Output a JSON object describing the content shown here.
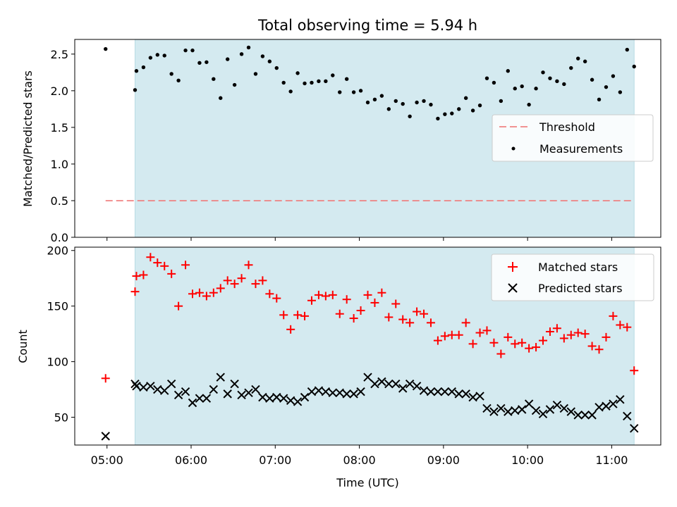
{
  "chart_data": [
    {
      "type": "scatter",
      "title": "Total observing time = 5.94 h",
      "xlabel": "",
      "ylabel": "Matched/Predicted stars",
      "xlim": [
        "04:37",
        "11:35"
      ],
      "ylim": [
        0,
        2.7
      ],
      "yticks": [
        "0.0",
        "0.5",
        "1.0",
        "1.5",
        "2.0",
        "2.5"
      ],
      "shaded_interval": [
        "05:20",
        "11:16"
      ],
      "shade_color": "#d4eaf0",
      "threshold": {
        "name": "Threshold",
        "value": 0.5,
        "color": "#f08080"
      },
      "legend": {
        "placement": "center-right",
        "entries": [
          "Threshold",
          "Measurements"
        ]
      },
      "series": [
        {
          "name": "Measurements",
          "color": "#000000",
          "x": [
            "04:59",
            "05:20",
            "05:21",
            "05:26",
            "05:31",
            "05:36",
            "05:41",
            "05:46",
            "05:51",
            "05:56",
            "06:01",
            "06:06",
            "06:11",
            "06:16",
            "06:21",
            "06:26",
            "06:31",
            "06:36",
            "06:41",
            "06:46",
            "06:51",
            "06:56",
            "07:01",
            "07:06",
            "07:11",
            "07:16",
            "07:21",
            "07:26",
            "07:31",
            "07:36",
            "07:41",
            "07:46",
            "07:51",
            "07:56",
            "08:01",
            "08:06",
            "08:11",
            "08:16",
            "08:21",
            "08:26",
            "08:31",
            "08:36",
            "08:41",
            "08:46",
            "08:51",
            "08:56",
            "09:01",
            "09:06",
            "09:11",
            "09:16",
            "09:21",
            "09:26",
            "09:31",
            "09:36",
            "09:41",
            "09:46",
            "09:51",
            "09:56",
            "10:01",
            "10:06",
            "10:11",
            "10:16",
            "10:21",
            "10:26",
            "10:31",
            "10:36",
            "10:41",
            "10:46",
            "10:51",
            "10:56",
            "11:01",
            "11:06",
            "11:11",
            "11:16"
          ],
          "y": [
            2.57,
            2.01,
            2.27,
            2.32,
            2.45,
            2.49,
            2.48,
            2.23,
            2.14,
            2.55,
            2.55,
            2.38,
            2.39,
            2.16,
            1.9,
            2.43,
            2.08,
            2.5,
            2.59,
            2.23,
            2.47,
            2.4,
            2.31,
            2.11,
            1.99,
            2.24,
            2.1,
            2.11,
            2.13,
            2.13,
            2.21,
            1.98,
            2.16,
            1.98,
            2.0,
            1.84,
            1.88,
            1.93,
            1.75,
            1.86,
            1.82,
            1.65,
            1.84,
            1.86,
            1.81,
            1.62,
            1.68,
            1.69,
            1.75,
            1.9,
            1.73,
            1.8,
            2.17,
            2.11,
            1.86,
            2.27,
            2.03,
            2.06,
            1.81,
            2.03,
            2.25,
            2.17,
            2.13,
            2.09,
            2.31,
            2.44,
            2.4,
            2.15,
            1.88,
            2.05,
            2.2,
            1.98,
            2.56,
            2.33
          ]
        }
      ]
    },
    {
      "type": "scatter",
      "title": "",
      "xlabel": "Time (UTC)",
      "ylabel": "Count",
      "xlim": [
        "04:37",
        "11:35"
      ],
      "ylim": [
        25,
        203
      ],
      "yticks": [
        "50",
        "100",
        "150",
        "200"
      ],
      "xticks": [
        "05:00",
        "06:00",
        "07:00",
        "08:00",
        "09:00",
        "10:00",
        "11:00"
      ],
      "shaded_interval": [
        "05:20",
        "11:16"
      ],
      "shade_color": "#d4eaf0",
      "legend": {
        "placement": "top-right",
        "entries": [
          "Matched stars",
          "Predicted stars"
        ]
      },
      "series": [
        {
          "name": "Matched stars",
          "marker": "+",
          "color": "#ff0000",
          "x": [
            "04:59",
            "05:20",
            "05:21",
            "05:26",
            "05:31",
            "05:36",
            "05:41",
            "05:46",
            "05:51",
            "05:56",
            "06:01",
            "06:06",
            "06:11",
            "06:16",
            "06:21",
            "06:26",
            "06:31",
            "06:36",
            "06:41",
            "06:46",
            "06:51",
            "06:56",
            "07:01",
            "07:06",
            "07:11",
            "07:16",
            "07:21",
            "07:26",
            "07:31",
            "07:36",
            "07:41",
            "07:46",
            "07:51",
            "07:56",
            "08:01",
            "08:06",
            "08:11",
            "08:16",
            "08:21",
            "08:26",
            "08:31",
            "08:36",
            "08:41",
            "08:46",
            "08:51",
            "08:56",
            "09:01",
            "09:06",
            "09:11",
            "09:16",
            "09:21",
            "09:26",
            "09:31",
            "09:36",
            "09:41",
            "09:46",
            "09:51",
            "09:56",
            "10:01",
            "10:06",
            "10:11",
            "10:16",
            "10:21",
            "10:26",
            "10:31",
            "10:36",
            "10:41",
            "10:46",
            "10:51",
            "10:56",
            "11:01",
            "11:06",
            "11:11",
            "11:16"
          ],
          "y": [
            85,
            163,
            177,
            178,
            194,
            189,
            186,
            179,
            150,
            187,
            161,
            162,
            159,
            162,
            166,
            173,
            170,
            175,
            187,
            170,
            173,
            161,
            157,
            142,
            129,
            142,
            141,
            155,
            160,
            159,
            160,
            143,
            156,
            139,
            146,
            160,
            153,
            162,
            140,
            152,
            138,
            135,
            145,
            143,
            135,
            119,
            123,
            124,
            124,
            135,
            116,
            126,
            128,
            117,
            107,
            122,
            116,
            117,
            112,
            113,
            119,
            127,
            130,
            121,
            124,
            126,
            125,
            114,
            111,
            122,
            141,
            133,
            131,
            92
          ]
        },
        {
          "name": "Predicted stars",
          "marker": "x",
          "color": "#000000",
          "x": [
            "04:59",
            "05:20",
            "05:21",
            "05:26",
            "05:31",
            "05:36",
            "05:41",
            "05:46",
            "05:51",
            "05:56",
            "06:01",
            "06:06",
            "06:11",
            "06:16",
            "06:21",
            "06:26",
            "06:31",
            "06:36",
            "06:41",
            "06:46",
            "06:51",
            "06:56",
            "07:01",
            "07:06",
            "07:11",
            "07:16",
            "07:21",
            "07:26",
            "07:31",
            "07:36",
            "07:41",
            "07:46",
            "07:51",
            "07:56",
            "08:01",
            "08:06",
            "08:11",
            "08:16",
            "08:21",
            "08:26",
            "08:31",
            "08:36",
            "08:41",
            "08:46",
            "08:51",
            "08:56",
            "09:01",
            "09:06",
            "09:11",
            "09:16",
            "09:21",
            "09:26",
            "09:31",
            "09:36",
            "09:41",
            "09:46",
            "09:51",
            "09:56",
            "10:01",
            "10:06",
            "10:11",
            "10:16",
            "10:21",
            "10:26",
            "10:31",
            "10:36",
            "10:41",
            "10:46",
            "10:51",
            "10:56",
            "11:01",
            "11:06",
            "11:11",
            "11:16"
          ],
          "y": [
            33,
            80,
            78,
            77,
            78,
            75,
            74,
            80,
            70,
            73,
            63,
            67,
            67,
            75,
            86,
            71,
            80,
            70,
            72,
            75,
            68,
            67,
            68,
            67,
            65,
            64,
            68,
            73,
            74,
            73,
            72,
            72,
            71,
            71,
            73,
            86,
            80,
            82,
            80,
            80,
            76,
            80,
            78,
            74,
            73,
            73,
            73,
            73,
            71,
            71,
            68,
            69,
            58,
            55,
            58,
            55,
            56,
            57,
            62,
            56,
            53,
            57,
            61,
            58,
            55,
            52,
            52,
            52,
            59,
            60,
            62,
            66,
            51,
            40
          ]
        }
      ]
    }
  ]
}
